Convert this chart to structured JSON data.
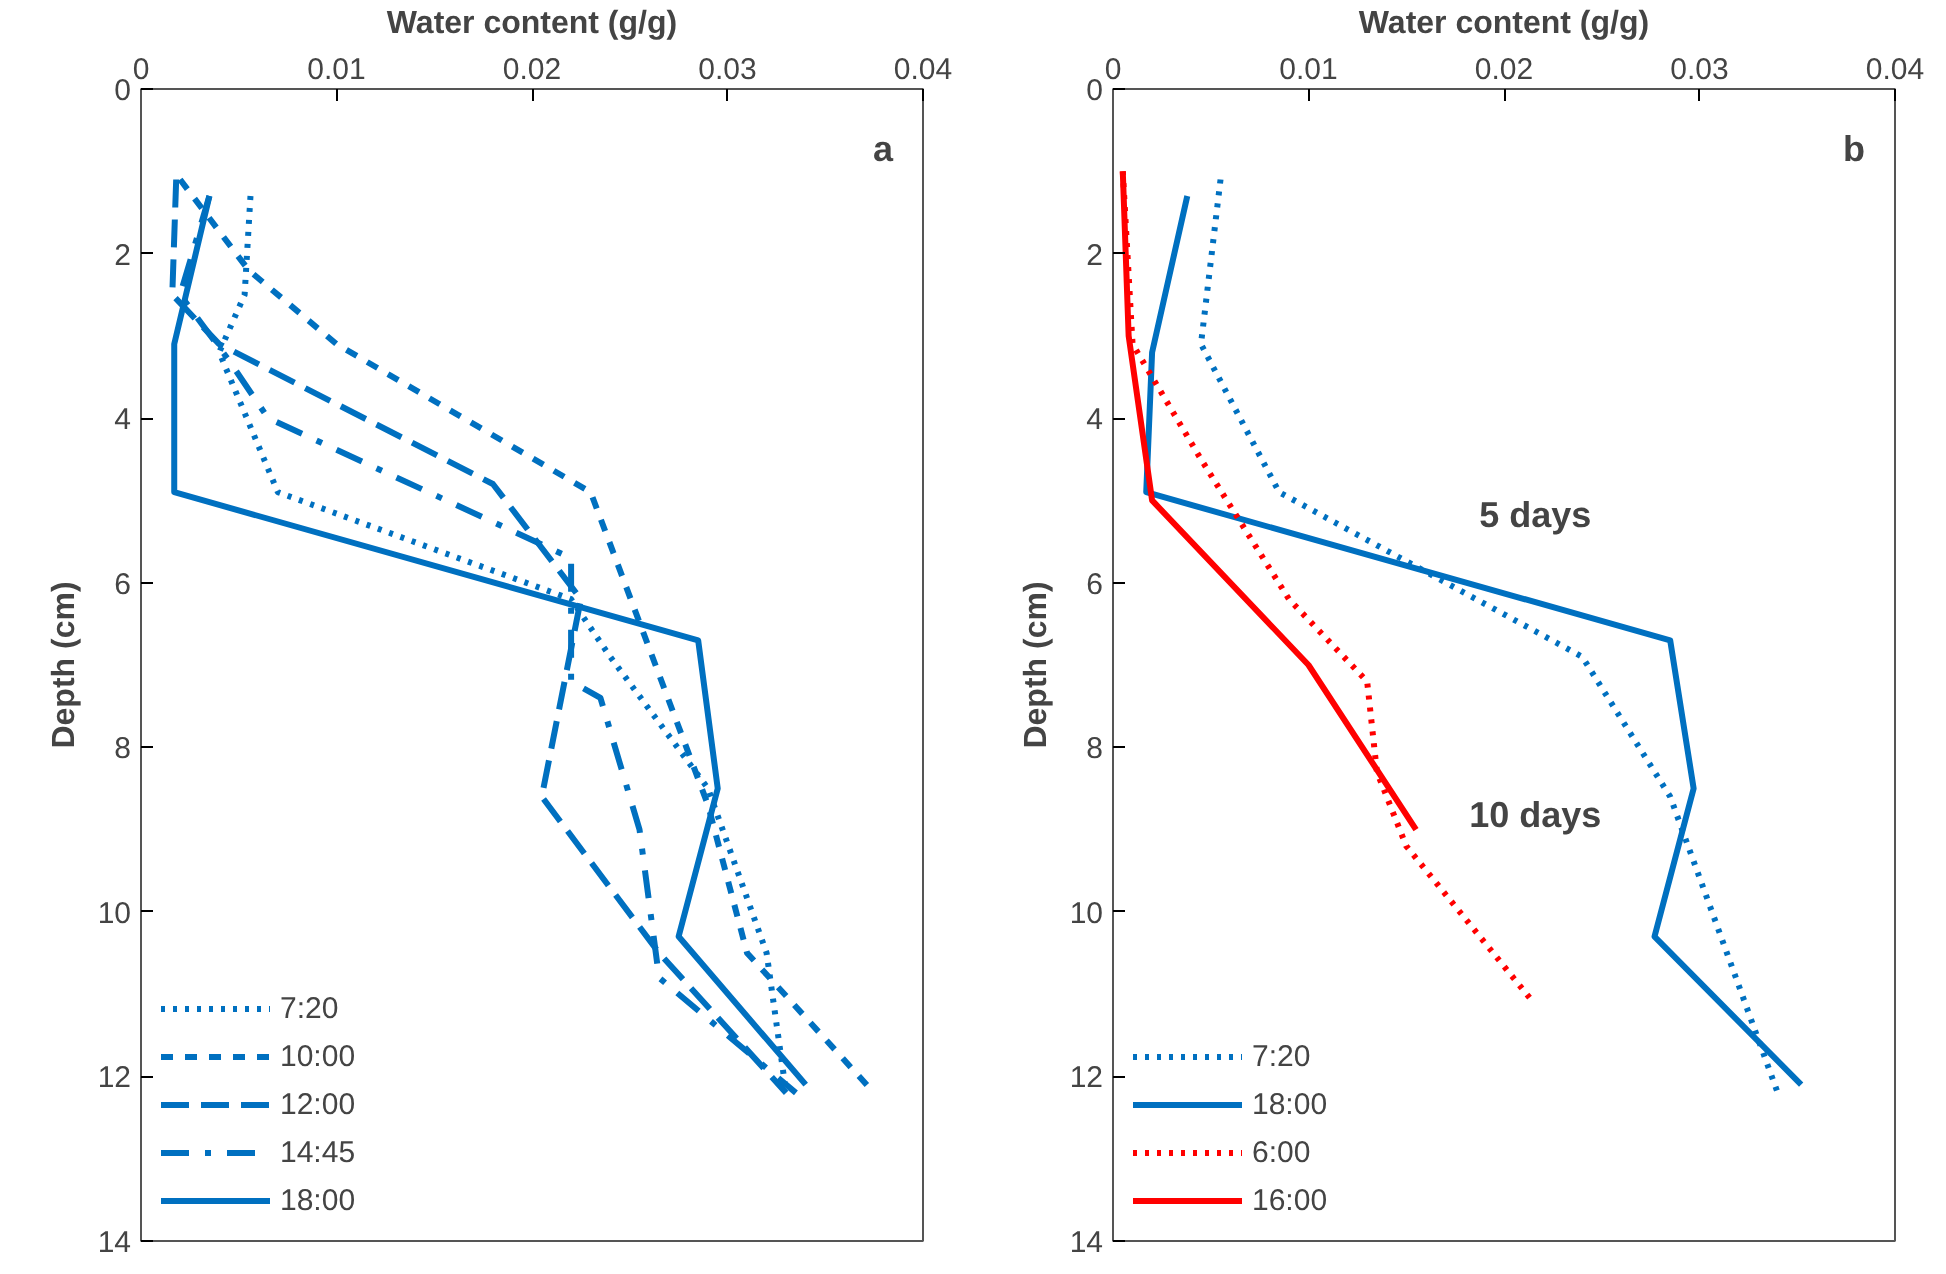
{
  "chart_data": [
    {
      "type": "line",
      "xlabel": "Water content (g/g)",
      "ylabel": "Depth (cm)",
      "xlim": [
        0,
        0.04
      ],
      "xticks": [
        0,
        0.01,
        0.02,
        0.03,
        0.04
      ],
      "ylim": [
        14,
        0
      ],
      "yticks": [
        0,
        2,
        4,
        6,
        8,
        10,
        12,
        14
      ],
      "grid": false,
      "legend": "bottom left",
      "annotations": [
        "a"
      ],
      "series": [
        {
          "name": "7:20",
          "color": "#0070c0",
          "line_style": "dotted",
          "x": [
            0.0056,
            0.0053,
            0.004,
            0.007,
            0.022,
            0.024,
            0.029,
            0.032,
            0.033
          ],
          "values": [
            1.3,
            2.5,
            3.2,
            4.9,
            6.2,
            6.9,
            8.5,
            10.5,
            12.2
          ]
        },
        {
          "name": "10:00",
          "color": "#0070c0",
          "line_style": "dashed",
          "x": [
            0.002,
            0.0055,
            0.01,
            0.023,
            0.026,
            0.029,
            0.031,
            0.0375
          ],
          "values": [
            1.1,
            2.2,
            3.1,
            4.9,
            6.8,
            8.7,
            10.5,
            12.2
          ]
        },
        {
          "name": "12:00",
          "color": "#0070c0",
          "line_style": "longdash",
          "x": [
            0.0018,
            0.0016,
            0.004,
            0.018,
            0.0225,
            0.0205,
            0.0265,
            0.033
          ],
          "values": [
            1.1,
            2.5,
            3.1,
            4.8,
            6.2,
            8.6,
            10.5,
            12.2
          ]
        },
        {
          "name": "14:45",
          "color": "#0070c0",
          "line_style": "dashdot",
          "x": [
            0.0035,
            0.002,
            0.0045,
            0.0065,
            0.022,
            0.022,
            0.0235,
            0.0255,
            0.0265,
            0.0335
          ],
          "values": [
            1.3,
            2.5,
            3.3,
            4.0,
            5.7,
            7.2,
            7.4,
            9.0,
            10.8,
            12.2
          ]
        },
        {
          "name": "18:00",
          "color": "#0070c0",
          "line_style": "solid",
          "x": [
            0.0035,
            0.0017,
            0.0017,
            0.0285,
            0.0295,
            0.0275,
            0.034
          ],
          "values": [
            1.3,
            3.1,
            4.9,
            6.7,
            8.5,
            10.3,
            12.1
          ]
        }
      ]
    },
    {
      "type": "line",
      "xlabel": "Water content (g/g)",
      "ylabel": "Depth (cm)",
      "xlim": [
        0,
        0.04
      ],
      "xticks": [
        0,
        0.01,
        0.02,
        0.03,
        0.04
      ],
      "ylim": [
        14,
        0
      ],
      "yticks": [
        0,
        2,
        4,
        6,
        8,
        10,
        12,
        14
      ],
      "grid": false,
      "legend": "bottom left",
      "annotations": [
        "b",
        "5 days",
        "10 days"
      ],
      "series": [
        {
          "name": "7:20",
          "color": "#0070c0",
          "line_style": "dotted",
          "x": [
            0.0055,
            0.0045,
            0.0085,
            0.024,
            0.0285,
            0.034
          ],
          "values": [
            1.1,
            3.1,
            4.9,
            6.9,
            8.6,
            12.2
          ]
        },
        {
          "name": "18:00",
          "color": "#0070c0",
          "line_style": "solid",
          "x": [
            0.0038,
            0.002,
            0.0017,
            0.0285,
            0.0297,
            0.0277,
            0.0352
          ],
          "values": [
            1.3,
            3.2,
            4.9,
            6.7,
            8.5,
            10.3,
            12.1
          ]
        },
        {
          "name": "6:00",
          "color": "#ff0000",
          "line_style": "dotted",
          "x": [
            0.0005,
            0.001,
            0.0045,
            0.009,
            0.013,
            0.0135,
            0.015,
            0.0215
          ],
          "values": [
            1.0,
            3.1,
            4.5,
            6.2,
            7.2,
            8.3,
            9.2,
            11.1
          ]
        },
        {
          "name": "16:00",
          "color": "#ff0000",
          "line_style": "solid",
          "x": [
            0.0005,
            0.0008,
            0.002,
            0.01,
            0.0155
          ],
          "values": [
            1.0,
            3.0,
            5.0,
            7.0,
            9.0
          ]
        }
      ]
    }
  ]
}
